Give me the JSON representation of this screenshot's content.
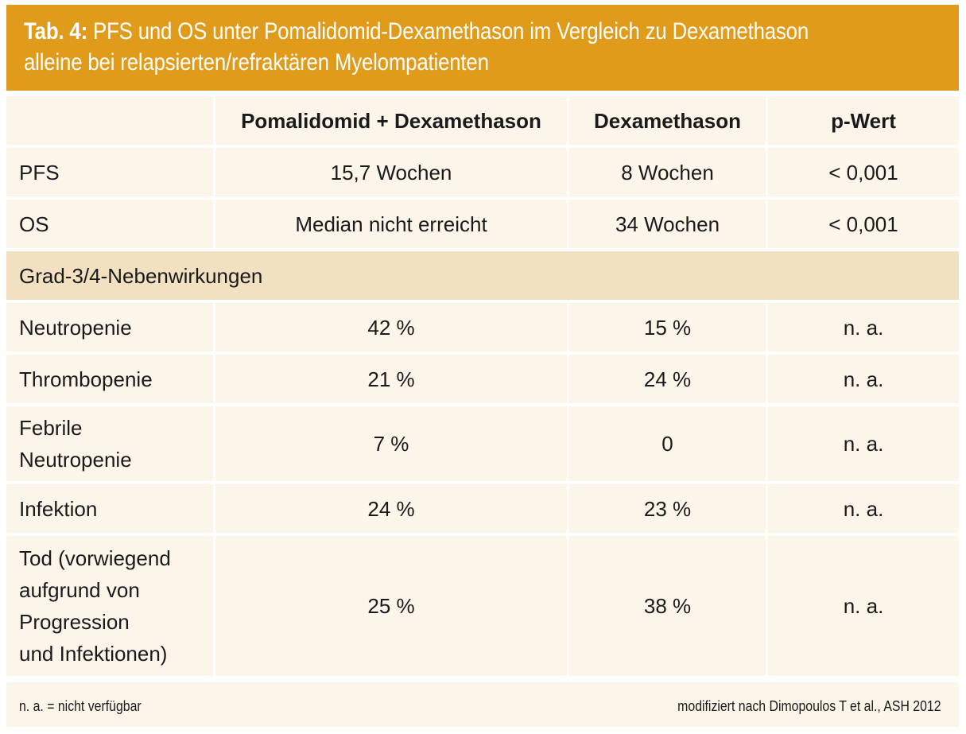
{
  "title": {
    "label": "Tab. 4:",
    "line1": "PFS und OS unter Pomalidomid-Dexamethason im Vergleich zu Dexamethason",
    "line2": "alleine bei relapsierten/refraktären Myelompatienten"
  },
  "table": {
    "headers": [
      "",
      "Pomalidomid + Dexamethason",
      "Dexamethason",
      "p-Wert"
    ],
    "rows": [
      [
        "PFS",
        "15,7 Wochen",
        "8 Wochen",
        "< 0,001"
      ],
      [
        "OS",
        "Median nicht erreicht",
        "34 Wochen",
        "< 0,001"
      ]
    ],
    "section_label": "Grad-3/4-Nebenwirkungen",
    "ae_rows": [
      [
        "Neutropenie",
        "42 %",
        "15 %",
        "n. a."
      ],
      [
        "Thrombopenie",
        "21 %",
        "24 %",
        "n. a."
      ],
      [
        "Febrile\nNeutropenie",
        "7 %",
        "0",
        "n. a."
      ],
      [
        "Infektion",
        "24 %",
        "23 %",
        "n. a."
      ],
      [
        "Tod (vorwiegend\naufgrund von\nProgression\nund Infektionen)",
        "25 %",
        "38 %",
        "n. a."
      ]
    ]
  },
  "footer": {
    "note": "n. a. = nicht verfügbar",
    "source": "modifiziert nach Dimopoulos T et al., ASH 2012"
  },
  "colors": {
    "header_bar": "#e09b1a",
    "cell_bg": "#fbf5ea",
    "section_bg": "#f2e1c0"
  }
}
